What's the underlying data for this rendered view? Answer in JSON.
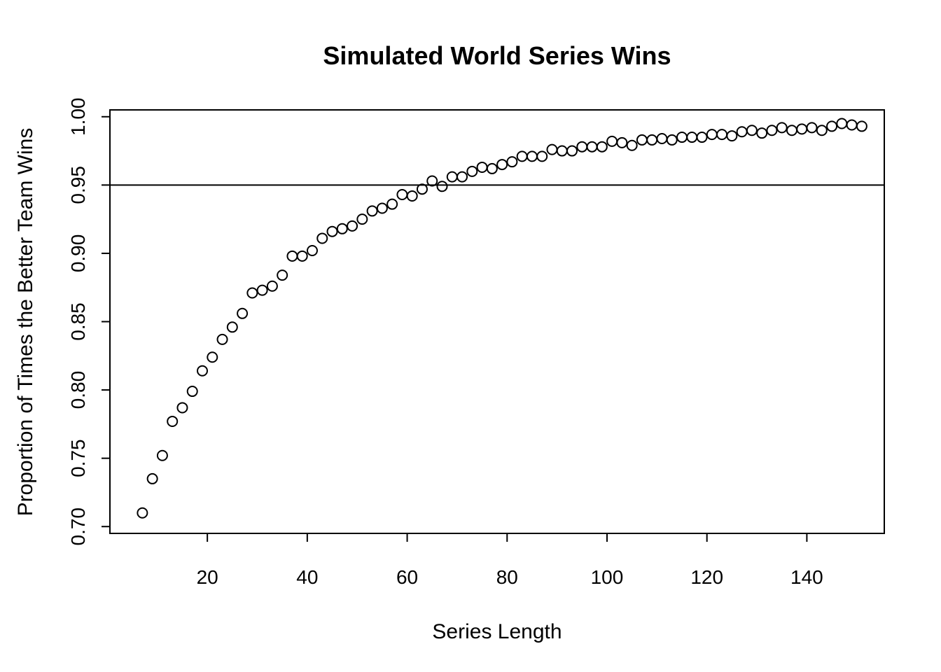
{
  "chart_data": {
    "type": "scatter",
    "title": "Simulated World Series Wins",
    "xlabel": "Series Length",
    "ylabel": "Proportion of Times the Better Team Wins",
    "xlim": [
      0.5,
      155.5
    ],
    "ylim": [
      0.695,
      1.005
    ],
    "xticks": [
      20,
      40,
      60,
      80,
      100,
      120,
      140
    ],
    "yticks": [
      0.7,
      0.75,
      0.8,
      0.85,
      0.9,
      0.95,
      1.0
    ],
    "ytick_labels": [
      "0.70",
      "0.75",
      "0.80",
      "0.85",
      "0.90",
      "0.95",
      "1.00"
    ],
    "hline": 0.95,
    "grid": false,
    "marker": "open-circle",
    "x": [
      7,
      9,
      11,
      13,
      15,
      17,
      19,
      21,
      23,
      25,
      27,
      29,
      31,
      33,
      35,
      37,
      39,
      41,
      43,
      45,
      47,
      49,
      51,
      53,
      55,
      57,
      59,
      61,
      63,
      65,
      67,
      69,
      71,
      73,
      75,
      77,
      79,
      81,
      83,
      85,
      87,
      89,
      91,
      93,
      95,
      97,
      99,
      101,
      103,
      105,
      107,
      109,
      111,
      113,
      115,
      117,
      119,
      121,
      123,
      125,
      127,
      129,
      131,
      133,
      135,
      137,
      139,
      141,
      143,
      145,
      147,
      149,
      151
    ],
    "y": [
      0.71,
      0.735,
      0.752,
      0.777,
      0.787,
      0.799,
      0.814,
      0.824,
      0.837,
      0.846,
      0.856,
      0.871,
      0.873,
      0.876,
      0.884,
      0.898,
      0.898,
      0.902,
      0.911,
      0.916,
      0.918,
      0.92,
      0.925,
      0.931,
      0.933,
      0.936,
      0.943,
      0.942,
      0.947,
      0.953,
      0.949,
      0.956,
      0.956,
      0.96,
      0.963,
      0.962,
      0.965,
      0.967,
      0.971,
      0.971,
      0.971,
      0.976,
      0.975,
      0.975,
      0.978,
      0.978,
      0.978,
      0.982,
      0.981,
      0.979,
      0.983,
      0.983,
      0.984,
      0.983,
      0.985,
      0.985,
      0.985,
      0.987,
      0.987,
      0.986,
      0.989,
      0.99,
      0.988,
      0.99,
      0.992,
      0.99,
      0.991,
      0.992,
      0.99,
      0.993,
      0.995,
      0.994,
      0.993
    ]
  }
}
